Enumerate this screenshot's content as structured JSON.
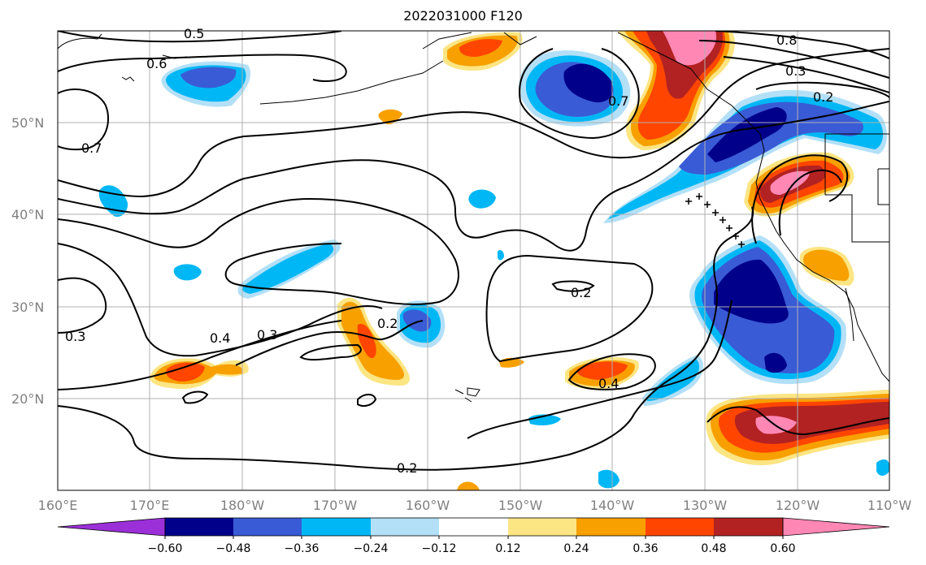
{
  "title": "2022031000 F120",
  "lon_labels": [
    "160°E",
    "170°E",
    "180°W",
    "170°W",
    "160°W",
    "150°W",
    "140°W",
    "130°W",
    "120°W",
    "110°W"
  ],
  "lat_labels": [
    "50°N",
    "40°N",
    "30°N",
    "20°N"
  ],
  "contour_labels": [
    "0.5",
    "0.6",
    "0.7",
    "0.7",
    "0.8",
    "0.3",
    "0.2",
    "0.4",
    "0.3",
    "0.2",
    "0.3",
    "0.2",
    "0.4",
    "0.2"
  ],
  "colorbar": {
    "ticks": [
      "−0.60",
      "−0.48",
      "−0.36",
      "−0.24",
      "−0.12",
      "0.12",
      "0.24",
      "0.36",
      "0.48",
      "0.60"
    ],
    "colors": [
      "#9b30d9",
      "#00008b",
      "#3a5bd6",
      "#00b7f5",
      "#b3e0f7",
      "#ffffff",
      "#fce583",
      "#f7a000",
      "#ff4500",
      "#b22222",
      "#ff87b4"
    ]
  },
  "fill_colors": {
    "neg_light": "#b3e0f7",
    "neg_mid": "#00b7f5",
    "neg_strong": "#3a5bd6",
    "neg_max": "#00008b",
    "pos_light": "#fce583",
    "pos_mid": "#f7a000",
    "pos_strong": "#ff4500",
    "pos_deep": "#b22222",
    "pos_max": "#ff87b4"
  }
}
